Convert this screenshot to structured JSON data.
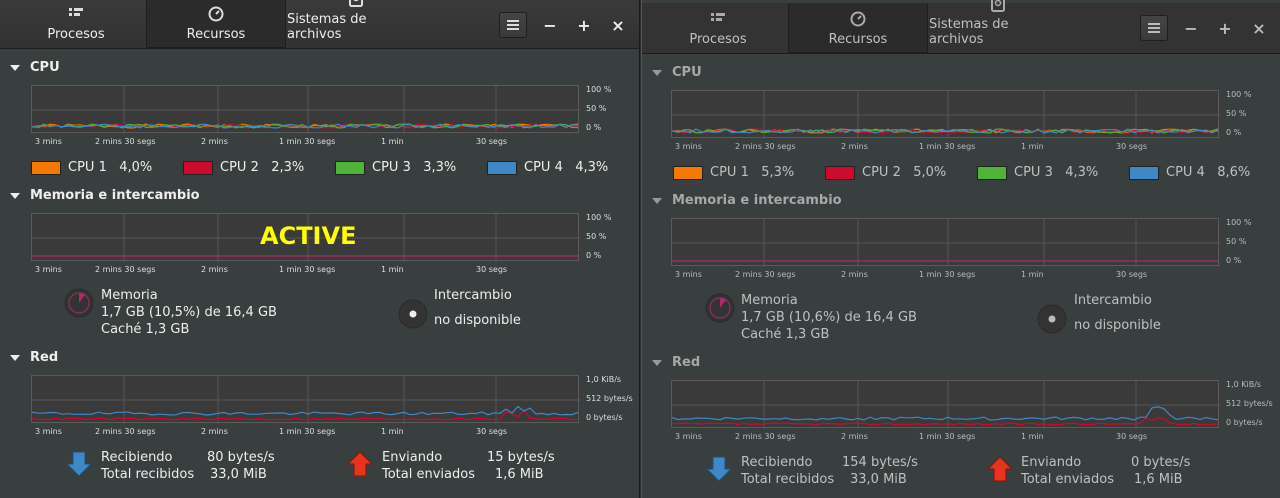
{
  "overlay": {
    "label": "ACTIVE"
  },
  "tabs": [
    {
      "label": "Procesos",
      "icon": "process-list-icon"
    },
    {
      "label": "Recursos",
      "icon": "gauge-icon"
    },
    {
      "label": "Sistemas de archivos",
      "icon": "disk-icon"
    }
  ],
  "sections": {
    "cpu": "CPU",
    "memory": "Memoria e intercambio",
    "network": "Red"
  },
  "axis": {
    "x_ticks": [
      "3 mins",
      "2 mins 30 segs",
      "2 mins",
      "1 min 30 segs",
      "1 min",
      "30 segs"
    ],
    "pct_ticks": [
      "100 %",
      "50 %",
      "0 %"
    ],
    "net_ticks": [
      "1,0  KiB/s",
      "512  bytes/s",
      "0  bytes/s"
    ]
  },
  "colors": {
    "cpu1": "#f57900",
    "cpu2": "#cc0a2d",
    "cpu3": "#4fb33a",
    "cpu4": "#3f87c5",
    "recv": "#3f87c5",
    "send": "#cc0a2d",
    "memory": "#ad2a67"
  },
  "windows": [
    {
      "cpu": [
        {
          "name": "CPU 1",
          "value": "4,0%"
        },
        {
          "name": "CPU 2",
          "value": "2,3%"
        },
        {
          "name": "CPU 3",
          "value": "3,3%"
        },
        {
          "name": "CPU 4",
          "value": "4,3%"
        }
      ],
      "memory": {
        "label": "Memoria",
        "usage": "1,7  GB (10,5%) de 16,4  GB",
        "cache": "Caché 1,3  GB",
        "swap_label": "Intercambio",
        "swap_status": "no disponible"
      },
      "network": {
        "recv_label": "Recibiendo",
        "recv_value": "80 bytes/s",
        "recv_total_label": "Total recibidos",
        "recv_total": "33,0  MiB",
        "send_label": "Enviando",
        "send_value": "15 bytes/s",
        "send_total_label": "Total enviados",
        "send_total": "1,6  MiB"
      }
    },
    {
      "cpu": [
        {
          "name": "CPU 1",
          "value": "5,3%"
        },
        {
          "name": "CPU 2",
          "value": "5,0%"
        },
        {
          "name": "CPU 3",
          "value": "4,3%"
        },
        {
          "name": "CPU 4",
          "value": "8,6%"
        }
      ],
      "memory": {
        "label": "Memoria",
        "usage": "1,7  GB (10,6%) de 16,4  GB",
        "cache": "Caché 1,3  GB",
        "swap_label": "Intercambio",
        "swap_status": "no disponible"
      },
      "network": {
        "recv_label": "Recibiendo",
        "recv_value": "154 bytes/s",
        "recv_total_label": "Total recibidos",
        "recv_total": "33,0  MiB",
        "send_label": "Enviando",
        "send_value": "0 bytes/s",
        "send_total_label": "Total enviados",
        "send_total": "1,6  MiB"
      }
    }
  ]
}
